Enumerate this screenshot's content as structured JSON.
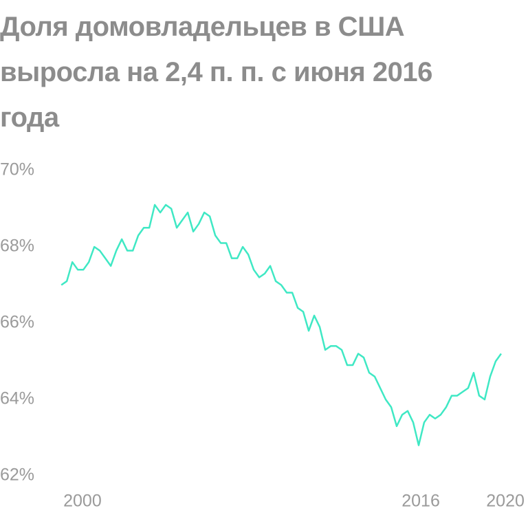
{
  "chart_data": {
    "type": "line",
    "title": "Доля домовладельцев в США выросла на 2,4 п. п. с июня 2016 года",
    "x": [
      1999.0,
      1999.26,
      1999.52,
      1999.78,
      2000.04,
      2000.3,
      2000.56,
      2000.82,
      2001.08,
      2001.34,
      2001.6,
      2001.86,
      2002.12,
      2002.38,
      2002.64,
      2002.9,
      2003.16,
      2003.42,
      2003.68,
      2003.94,
      2004.2,
      2004.46,
      2004.72,
      2004.98,
      2005.24,
      2005.5,
      2005.76,
      2006.02,
      2006.28,
      2006.54,
      2006.8,
      2007.06,
      2007.32,
      2007.58,
      2007.84,
      2008.1,
      2008.36,
      2008.62,
      2008.88,
      2009.14,
      2009.4,
      2009.66,
      2009.92,
      2010.18,
      2010.44,
      2010.7,
      2010.96,
      2011.22,
      2011.48,
      2011.74,
      2012.0,
      2012.26,
      2012.52,
      2012.78,
      2013.04,
      2013.3,
      2013.56,
      2013.82,
      2014.08,
      2014.34,
      2014.6,
      2014.86,
      2015.12,
      2015.38,
      2015.64,
      2015.9,
      2016.16,
      2016.42,
      2016.68,
      2016.94,
      2017.2,
      2017.46,
      2017.72,
      2017.98,
      2018.24,
      2018.5,
      2018.76,
      2019.02,
      2019.28,
      2019.54,
      2019.8
    ],
    "series": [
      {
        "color": "#3fe8c4",
        "values": [
          67.0,
          67.1,
          67.6,
          67.4,
          67.4,
          67.6,
          68.0,
          67.9,
          67.7,
          67.5,
          67.9,
          68.2,
          67.9,
          67.9,
          68.3,
          68.5,
          68.5,
          69.1,
          68.9,
          69.1,
          69.0,
          68.5,
          68.7,
          68.9,
          68.4,
          68.6,
          68.9,
          68.8,
          68.3,
          68.1,
          68.1,
          67.7,
          67.7,
          68.0,
          67.8,
          67.4,
          67.2,
          67.3,
          67.5,
          67.1,
          67.0,
          66.8,
          66.8,
          66.4,
          66.3,
          65.8,
          66.2,
          65.9,
          65.3,
          65.4,
          65.4,
          65.3,
          64.9,
          64.9,
          65.2,
          65.1,
          64.7,
          64.6,
          64.3,
          64.0,
          63.8,
          63.3,
          63.6,
          63.7,
          63.4,
          62.8,
          63.4,
          63.6,
          63.5,
          63.6,
          63.8,
          64.1,
          64.1,
          64.2,
          64.3,
          64.7,
          64.1,
          64.0,
          64.6,
          65.0,
          65.2
        ]
      }
    ],
    "xlim": [
      1996.1,
      2021.07
    ],
    "xticks": [
      2000,
      2016,
      2020
    ],
    "ylim": [
      62,
      70
    ],
    "yticks": [
      {
        "value": 62,
        "label": "62%"
      },
      {
        "value": 64,
        "label": "64%"
      },
      {
        "value": 66,
        "label": "66%"
      },
      {
        "value": 68,
        "label": "68%"
      },
      {
        "value": 70,
        "label": "70%"
      }
    ]
  }
}
